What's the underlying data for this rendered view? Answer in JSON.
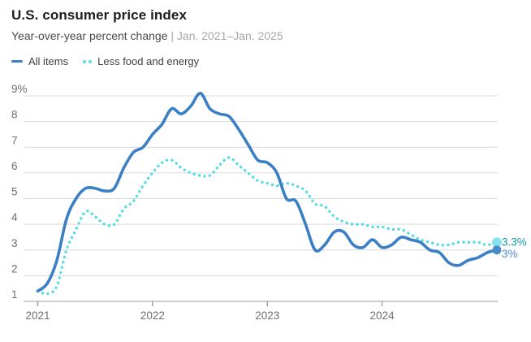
{
  "header": {
    "title": "U.S. consumer price index",
    "subtitle_main": "Year-over-year percent change ",
    "subtitle_separator": "| ",
    "subtitle_range": "Jan. 2021–Jan. 2025"
  },
  "legend": {
    "items": [
      {
        "label": "All items",
        "color": "#3b7fc4",
        "style": "solid"
      },
      {
        "label": "Less food and energy",
        "color": "#57dbe7",
        "style": "dotted"
      }
    ]
  },
  "colors": {
    "all_items_line": "#3b7fc4",
    "core_line": "#57dbe7",
    "core_end_dot": "#86e3ee",
    "all_items_end_dot": "#4a8ccb",
    "core_end_label": "#0f9aa8",
    "all_items_end_label": "#4a8ccb",
    "gridline": "#dadada",
    "axis_line": "#9b9b9b",
    "axis_text": "#6f6f6f"
  },
  "chart_data": {
    "type": "line",
    "title": "U.S. consumer price index",
    "subtitle": "Year-over-year percent change | Jan. 2021–Jan. 2025",
    "x_unit": "month",
    "x": [
      "2021-01",
      "2021-02",
      "2021-03",
      "2021-04",
      "2021-05",
      "2021-06",
      "2021-07",
      "2021-08",
      "2021-09",
      "2021-10",
      "2021-11",
      "2021-12",
      "2022-01",
      "2022-02",
      "2022-03",
      "2022-04",
      "2022-05",
      "2022-06",
      "2022-07",
      "2022-08",
      "2022-09",
      "2022-10",
      "2022-11",
      "2022-12",
      "2023-01",
      "2023-02",
      "2023-03",
      "2023-04",
      "2023-05",
      "2023-06",
      "2023-07",
      "2023-08",
      "2023-09",
      "2023-10",
      "2023-11",
      "2023-12",
      "2024-01",
      "2024-02",
      "2024-03",
      "2024-04",
      "2024-05",
      "2024-06",
      "2024-07",
      "2024-08",
      "2024-09",
      "2024-10",
      "2024-11",
      "2024-12",
      "2025-01"
    ],
    "series": [
      {
        "name": "All items",
        "color": "#3b7fc4",
        "dash": "solid",
        "values": [
          1.4,
          1.7,
          2.6,
          4.2,
          5.0,
          5.4,
          5.4,
          5.3,
          5.4,
          6.2,
          6.8,
          7.0,
          7.5,
          7.9,
          8.5,
          8.3,
          8.6,
          9.1,
          8.5,
          8.3,
          8.2,
          7.7,
          7.1,
          6.5,
          6.4,
          6.0,
          5.0,
          4.9,
          4.0,
          3.0,
          3.2,
          3.7,
          3.7,
          3.2,
          3.1,
          3.4,
          3.1,
          3.2,
          3.5,
          3.4,
          3.3,
          3.0,
          2.9,
          2.5,
          2.4,
          2.6,
          2.7,
          2.9,
          3.0
        ]
      },
      {
        "name": "Less food and energy",
        "color": "#57dbe7",
        "dash": "dotted",
        "values": [
          1.4,
          1.3,
          1.6,
          3.0,
          3.8,
          4.5,
          4.3,
          4.0,
          4.0,
          4.6,
          4.9,
          5.5,
          6.0,
          6.4,
          6.5,
          6.2,
          6.0,
          5.9,
          5.9,
          6.3,
          6.6,
          6.3,
          6.0,
          5.7,
          5.6,
          5.5,
          5.6,
          5.5,
          5.3,
          4.8,
          4.7,
          4.3,
          4.1,
          4.0,
          4.0,
          3.9,
          3.9,
          3.8,
          3.8,
          3.6,
          3.4,
          3.3,
          3.2,
          3.2,
          3.3,
          3.3,
          3.3,
          3.2,
          3.3
        ]
      }
    ],
    "ylim": [
      1,
      9.3
    ],
    "yticks": [
      1,
      2,
      3,
      4,
      5,
      6,
      7,
      8,
      9
    ],
    "ytick_labels": [
      "1",
      "2",
      "3",
      "4",
      "5",
      "6",
      "7",
      "8",
      "9%"
    ],
    "xticks": [
      "2021",
      "2022",
      "2023",
      "2024"
    ],
    "grid": "horizontal",
    "legend_position": "top-left",
    "end_labels": [
      {
        "series": "Less food and energy",
        "text": "3.3%",
        "color": "#0f9aa8"
      },
      {
        "series": "All items",
        "text": "3%",
        "color": "#4a8ccb"
      }
    ]
  }
}
